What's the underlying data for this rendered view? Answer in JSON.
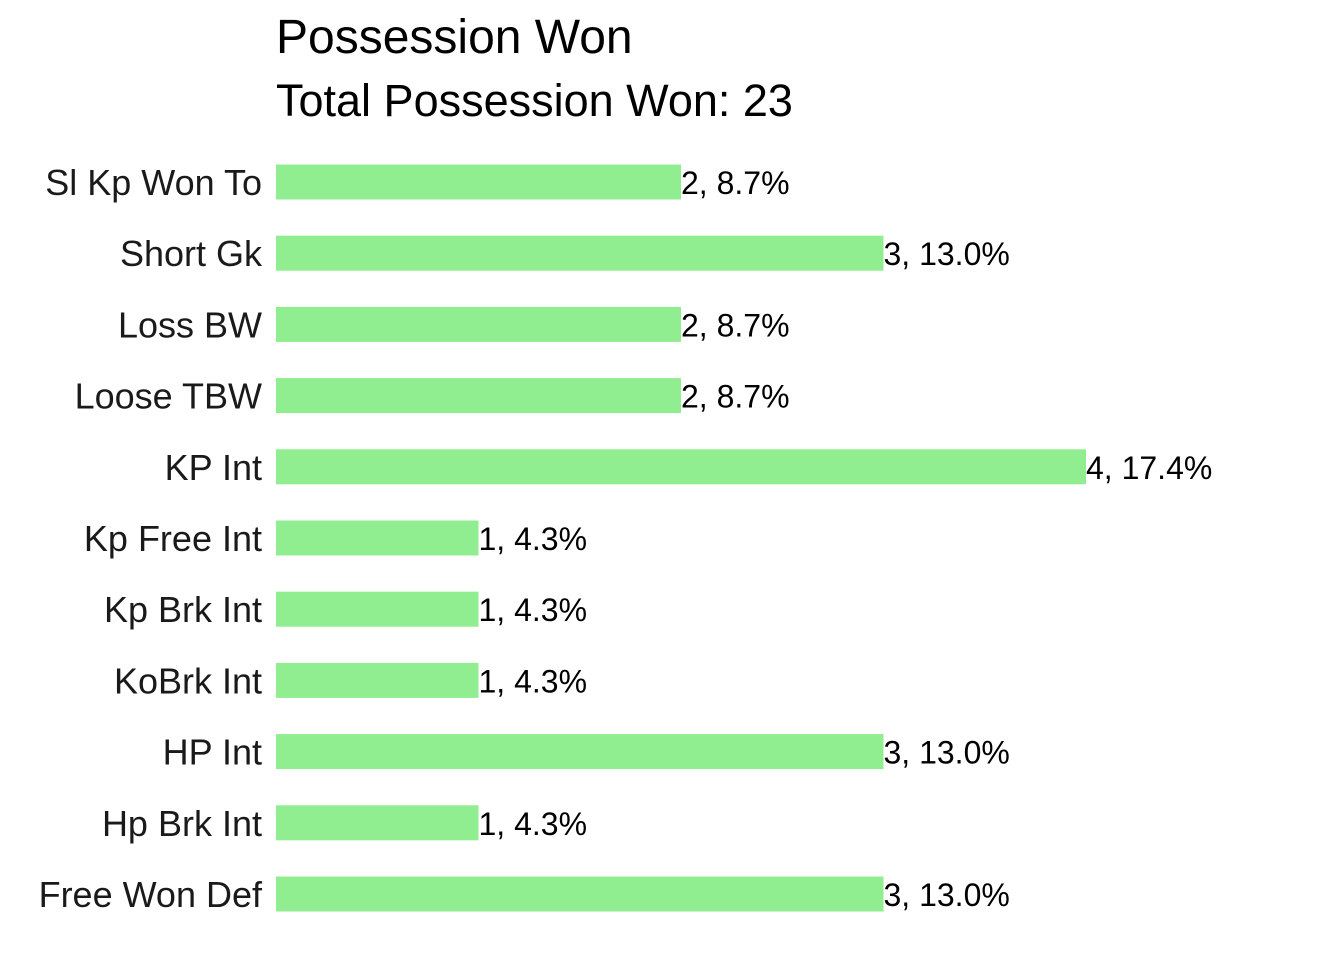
{
  "chart_data": {
    "type": "bar",
    "orientation": "horizontal",
    "title": "Possession Won",
    "subtitle": "Total Possession Won: 23",
    "xlabel": "",
    "ylabel": "",
    "grid": false,
    "xlim": [
      0,
      4
    ],
    "categories": [
      "Sl Kp Won To",
      "Short Gk",
      "Loss BW",
      "Loose TBW",
      "KP Int",
      "Kp Free Int",
      "Kp Brk Int",
      "KoBrk Int",
      "HP Int",
      "Hp Brk Int",
      "Free Won Def"
    ],
    "values": [
      2,
      3,
      2,
      2,
      4,
      1,
      1,
      1,
      3,
      1,
      3
    ],
    "data_labels": [
      "2, 8.7%",
      "3, 13.0%",
      "2, 8.7%",
      "2, 8.7%",
      "4, 17.4%",
      "1, 4.3%",
      "1, 4.3%",
      "1, 4.3%",
      "3, 13.0%",
      "1, 4.3%",
      "3, 13.0%"
    ],
    "bar_color": "#90EE90"
  }
}
